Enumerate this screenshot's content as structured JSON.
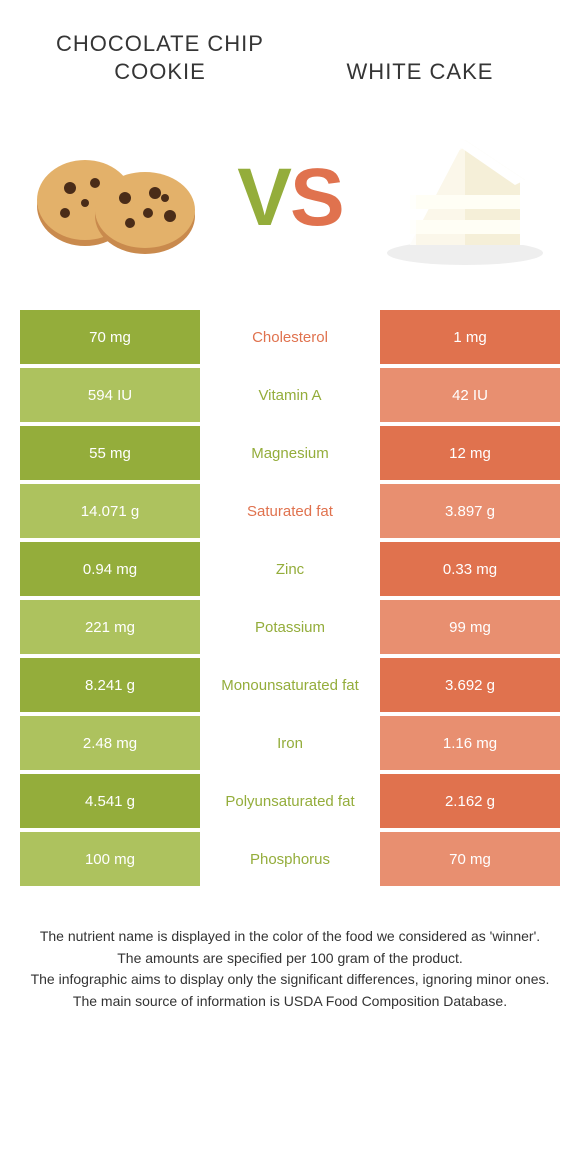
{
  "colors": {
    "left": "#94ad3b",
    "right": "#e0724e",
    "left_dim": "#adc25e",
    "right_dim": "#e88f70",
    "text_white": "#ffffff"
  },
  "food_left": {
    "title": "CHOCOLATE CHIP COOKIE"
  },
  "food_right": {
    "title": "WHITE CAKE"
  },
  "vs": {
    "v": "V",
    "s": "S"
  },
  "rows": [
    {
      "nutrient": "Cholesterol",
      "left": "70 mg",
      "right": "1 mg",
      "winner": "right"
    },
    {
      "nutrient": "Vitamin A",
      "left": "594 IU",
      "right": "42 IU",
      "winner": "left"
    },
    {
      "nutrient": "Magnesium",
      "left": "55 mg",
      "right": "12 mg",
      "winner": "left"
    },
    {
      "nutrient": "Saturated fat",
      "left": "14.071 g",
      "right": "3.897 g",
      "winner": "right"
    },
    {
      "nutrient": "Zinc",
      "left": "0.94 mg",
      "right": "0.33 mg",
      "winner": "left"
    },
    {
      "nutrient": "Potassium",
      "left": "221 mg",
      "right": "99 mg",
      "winner": "left"
    },
    {
      "nutrient": "Monounsaturated fat",
      "left": "8.241 g",
      "right": "3.692 g",
      "winner": "left"
    },
    {
      "nutrient": "Iron",
      "left": "2.48 mg",
      "right": "1.16 mg",
      "winner": "left"
    },
    {
      "nutrient": "Polyunsaturated fat",
      "left": "4.541 g",
      "right": "2.162 g",
      "winner": "left"
    },
    {
      "nutrient": "Phosphorus",
      "left": "100 mg",
      "right": "70 mg",
      "winner": "left"
    }
  ],
  "footer": {
    "l1": "The nutrient name is displayed in the color of the food we considered as 'winner'.",
    "l2": "The amounts are specified per 100 gram of the product.",
    "l3": "The infographic aims to display only the significant differences, ignoring minor ones.",
    "l4": "The main source of information is USDA Food Composition Database."
  }
}
